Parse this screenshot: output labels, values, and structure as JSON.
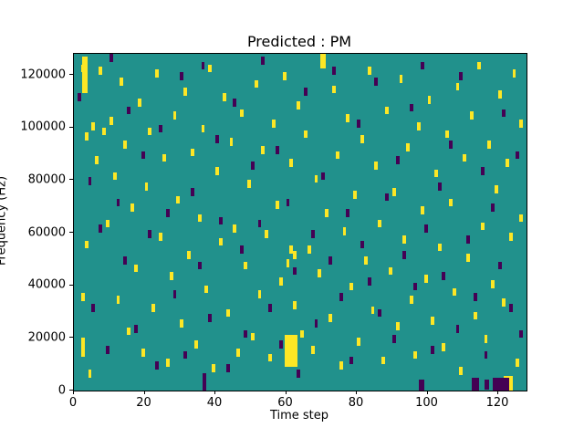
{
  "figure": {
    "title": "Predicted : PM"
  },
  "chart_data": {
    "type": "heatmap",
    "title": "Predicted : PM",
    "xlabel": "Time step",
    "ylabel": "Frequency (Hz)",
    "xlim": [
      0,
      128
    ],
    "ylim": [
      0,
      128000
    ],
    "x_ticks": [
      0,
      20,
      40,
      60,
      80,
      100,
      120
    ],
    "y_ticks": [
      0,
      20000,
      40000,
      60000,
      80000,
      100000,
      120000
    ],
    "grid": false,
    "legend": "none",
    "colors": {
      "background": "#21918c",
      "high": "#fde725",
      "low": "#440154",
      "axis": "#000000"
    },
    "cell_height_hz": 3000,
    "cells": {
      "yellow": [
        [
          2.3,
          113000,
          1.5,
          14000
        ],
        [
          59.6,
          9000,
          3.6,
          12000
        ],
        [
          69.8,
          122500,
          1.4,
          5500
        ],
        [
          121.5,
          0,
          2.6,
          5500
        ],
        [
          2,
          13000,
          1,
          7000
        ],
        [
          2,
          121000
        ],
        [
          3,
          95000
        ],
        [
          3,
          54000
        ],
        [
          2,
          34000
        ],
        [
          2,
          17000
        ],
        [
          4,
          5000
        ],
        [
          5,
          99000
        ],
        [
          6,
          86000
        ],
        [
          7,
          120000
        ],
        [
          8,
          97000
        ],
        [
          9,
          62000
        ],
        [
          10,
          101000
        ],
        [
          11,
          80000
        ],
        [
          12,
          33000
        ],
        [
          13,
          116000
        ],
        [
          14,
          92000
        ],
        [
          15,
          21000
        ],
        [
          16,
          68000
        ],
        [
          17,
          45000
        ],
        [
          18,
          108000
        ],
        [
          19,
          13000
        ],
        [
          20,
          76000
        ],
        [
          21,
          97000
        ],
        [
          22,
          30000
        ],
        [
          23,
          119000
        ],
        [
          24,
          57000
        ],
        [
          25,
          87000
        ],
        [
          26,
          9000
        ],
        [
          27,
          42000
        ],
        [
          28,
          103000
        ],
        [
          29,
          71000
        ],
        [
          30,
          24000
        ],
        [
          31,
          112000
        ],
        [
          32,
          50000
        ],
        [
          33,
          89000
        ],
        [
          34,
          16000
        ],
        [
          35,
          64000
        ],
        [
          36,
          98000
        ],
        [
          37,
          37000
        ],
        [
          38,
          121000
        ],
        [
          39,
          7000
        ],
        [
          40,
          82000
        ],
        [
          41,
          55000
        ],
        [
          42,
          110000
        ],
        [
          43,
          28000
        ],
        [
          44,
          93000
        ],
        [
          45,
          60000
        ],
        [
          46,
          13000
        ],
        [
          47,
          104000
        ],
        [
          48,
          46000
        ],
        [
          49,
          77000
        ],
        [
          50,
          19000
        ],
        [
          51,
          115000
        ],
        [
          52,
          35000
        ],
        [
          53,
          90000
        ],
        [
          54,
          58000
        ],
        [
          55,
          11000
        ],
        [
          56,
          100000
        ],
        [
          57,
          69000
        ],
        [
          58,
          40000
        ],
        [
          59,
          118000
        ],
        [
          60,
          47000
        ],
        [
          61,
          52000
        ],
        [
          62,
          50000
        ],
        [
          61,
          85000
        ],
        [
          62,
          31000
        ],
        [
          63,
          107000
        ],
        [
          64,
          20000
        ],
        [
          65,
          96000
        ],
        [
          66,
          52000
        ],
        [
          67,
          14000
        ],
        [
          68,
          79000
        ],
        [
          69,
          43000
        ],
        [
          71,
          66000
        ],
        [
          72,
          26000
        ],
        [
          73,
          113000
        ],
        [
          74,
          88000
        ],
        [
          75,
          8000
        ],
        [
          76,
          59000
        ],
        [
          77,
          102000
        ],
        [
          78,
          38000
        ],
        [
          79,
          73000
        ],
        [
          80,
          17000
        ],
        [
          81,
          94000
        ],
        [
          82,
          48000
        ],
        [
          83,
          120000
        ],
        [
          84,
          29000
        ],
        [
          85,
          84000
        ],
        [
          86,
          62000
        ],
        [
          87,
          10000
        ],
        [
          88,
          105000
        ],
        [
          89,
          44000
        ],
        [
          90,
          74000
        ],
        [
          91,
          23000
        ],
        [
          92,
          117000
        ],
        [
          93,
          56000
        ],
        [
          94,
          91000
        ],
        [
          95,
          33000
        ],
        [
          96,
          12000
        ],
        [
          97,
          99000
        ],
        [
          98,
          67000
        ],
        [
          99,
          41000
        ],
        [
          100,
          109000
        ],
        [
          101,
          25000
        ],
        [
          102,
          81000
        ],
        [
          103,
          53000
        ],
        [
          104,
          15000
        ],
        [
          105,
          96000
        ],
        [
          106,
          70000
        ],
        [
          107,
          36000
        ],
        [
          108,
          114000
        ],
        [
          109,
          6000
        ],
        [
          110,
          87000
        ],
        [
          111,
          49000
        ],
        [
          112,
          103000
        ],
        [
          113,
          27000
        ],
        [
          114,
          122000
        ],
        [
          115,
          61000
        ],
        [
          116,
          18000
        ],
        [
          117,
          92000
        ],
        [
          118,
          39000
        ],
        [
          119,
          75000
        ],
        [
          120,
          111000
        ],
        [
          121,
          32000
        ],
        [
          122,
          85000
        ],
        [
          123,
          57000
        ],
        [
          124,
          119000
        ],
        [
          125,
          9000
        ],
        [
          126,
          64000
        ],
        [
          126,
          100000
        ]
      ],
      "purple": [
        [
          112.5,
          0,
          2,
          5000
        ],
        [
          118.5,
          0,
          4.5,
          5000
        ],
        [
          116,
          500,
          1.5,
          3500
        ],
        [
          36.5,
          0,
          1,
          6500
        ],
        [
          97.5,
          0,
          1.5,
          4000
        ],
        [
          1,
          110000
        ],
        [
          4,
          78000
        ],
        [
          5,
          30000
        ],
        [
          7,
          60000
        ],
        [
          9,
          14000
        ],
        [
          10,
          125000
        ],
        [
          12,
          70000
        ],
        [
          14,
          48000
        ],
        [
          15,
          105000
        ],
        [
          17,
          22000
        ],
        [
          19,
          88000
        ],
        [
          21,
          58000
        ],
        [
          23,
          8000
        ],
        [
          24,
          98000
        ],
        [
          26,
          66000
        ],
        [
          28,
          35000
        ],
        [
          30,
          118000
        ],
        [
          31,
          12000
        ],
        [
          33,
          74000
        ],
        [
          35,
          46000
        ],
        [
          36,
          122000
        ],
        [
          38,
          26000
        ],
        [
          40,
          94000
        ],
        [
          41,
          63000
        ],
        [
          43,
          7000
        ],
        [
          45,
          108000
        ],
        [
          47,
          52000
        ],
        [
          48,
          20000
        ],
        [
          50,
          84000
        ],
        [
          52,
          62000
        ],
        [
          53,
          124000
        ],
        [
          55,
          30000
        ],
        [
          57,
          90000
        ],
        [
          58,
          16000
        ],
        [
          60,
          70000
        ],
        [
          62,
          44000
        ],
        [
          63,
          5000
        ],
        [
          65,
          112000
        ],
        [
          67,
          58000
        ],
        [
          68,
          24000
        ],
        [
          70,
          80000
        ],
        [
          72,
          48000
        ],
        [
          73,
          120000
        ],
        [
          75,
          34000
        ],
        [
          77,
          66000
        ],
        [
          78,
          10000
        ],
        [
          80,
          100000
        ],
        [
          81,
          54000
        ],
        [
          83,
          40000
        ],
        [
          85,
          116000
        ],
        [
          86,
          28000
        ],
        [
          88,
          72000
        ],
        [
          90,
          18000
        ],
        [
          91,
          86000
        ],
        [
          93,
          50000
        ],
        [
          95,
          106000
        ],
        [
          96,
          38000
        ],
        [
          98,
          122000
        ],
        [
          99,
          60000
        ],
        [
          101,
          14000
        ],
        [
          103,
          76000
        ],
        [
          104,
          42000
        ],
        [
          106,
          92000
        ],
        [
          108,
          22000
        ],
        [
          109,
          118000
        ],
        [
          111,
          56000
        ],
        [
          113,
          34000
        ],
        [
          115,
          82000
        ],
        [
          116,
          12000
        ],
        [
          118,
          68000
        ],
        [
          120,
          46000
        ],
        [
          121,
          104000
        ],
        [
          123,
          30000
        ],
        [
          125,
          88000
        ],
        [
          126,
          20000
        ]
      ]
    }
  }
}
